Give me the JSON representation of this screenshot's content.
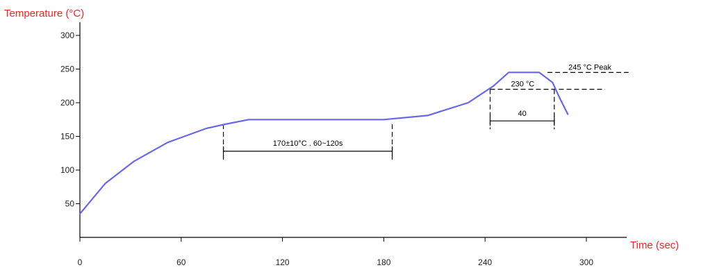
{
  "chart_data": {
    "type": "line",
    "title": "",
    "xlabel": "Time (sec)",
    "ylabel": "Temperature (°C)",
    "xlim": [
      0,
      320
    ],
    "ylim": [
      0,
      320
    ],
    "x_ticks": [
      0,
      60,
      120,
      180,
      240,
      300
    ],
    "y_ticks": [
      50,
      100,
      150,
      200,
      250,
      300
    ],
    "grid": false,
    "colors": {
      "series": "#6666ee",
      "axis_title": "#ff2020",
      "axes": "#000000"
    },
    "series": [
      {
        "x": [
          0,
          15,
          32,
          52,
          75,
          86,
          100,
          120,
          150,
          180,
          206,
          230,
          245,
          254,
          262,
          272,
          280,
          284,
          289
        ],
        "y": [
          35,
          80,
          113,
          141,
          162,
          168,
          175,
          175,
          175,
          175,
          181,
          200,
          225,
          245,
          245,
          245,
          230,
          208,
          183
        ]
      }
    ],
    "annotations": {
      "soak": {
        "label": "170±10°C . 60~120s",
        "x_start": 85,
        "x_end": 185,
        "y_top": 168,
        "y_bracket": 128
      },
      "above_liquidus": {
        "label": "40",
        "x_start": 243,
        "x_end": 281,
        "y_top": 220,
        "y_bracket": 173
      },
      "peak": {
        "label": "245 °C Peak",
        "y": 245,
        "x_start": 277,
        "x_end": 325
      },
      "liquidus": {
        "label": "230 °C",
        "y": 220,
        "x_start": 243,
        "x_end": 311
      }
    }
  }
}
